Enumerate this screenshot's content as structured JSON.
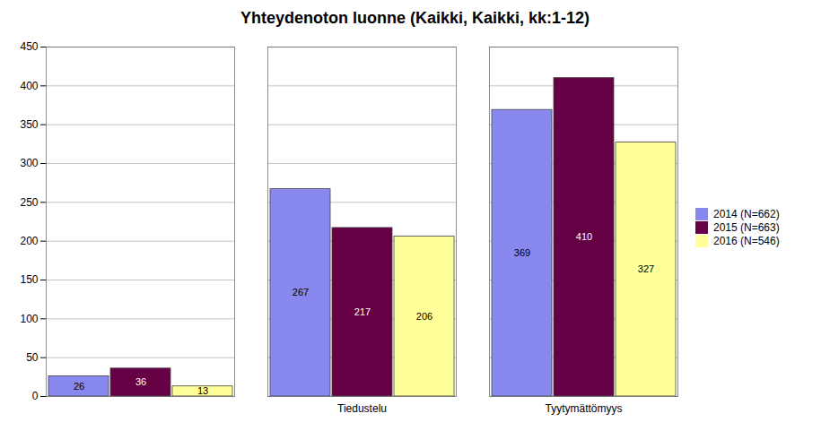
{
  "chart_data": {
    "type": "bar",
    "title": "Yhteydenoton luonne (Kaikki, Kaikki, kk:1-12)",
    "categories": [
      null,
      "Tiedustelu",
      "Tyytymättömyys"
    ],
    "series": [
      {
        "name": "2014 (N=662)",
        "color": "#8888ee",
        "values": [
          26,
          267,
          369
        ]
      },
      {
        "name": "2015 (N=663)",
        "color": "#660044",
        "values": [
          36,
          217,
          410
        ]
      },
      {
        "name": "2016 (N=546)",
        "color": "#ffff99",
        "values": [
          13,
          206,
          327
        ]
      }
    ],
    "ylim": [
      0,
      450
    ],
    "yticks": [
      0,
      50,
      100,
      150,
      200,
      250,
      300,
      350,
      400,
      450
    ],
    "grid": true,
    "legend": "right",
    "data_labels": true
  }
}
